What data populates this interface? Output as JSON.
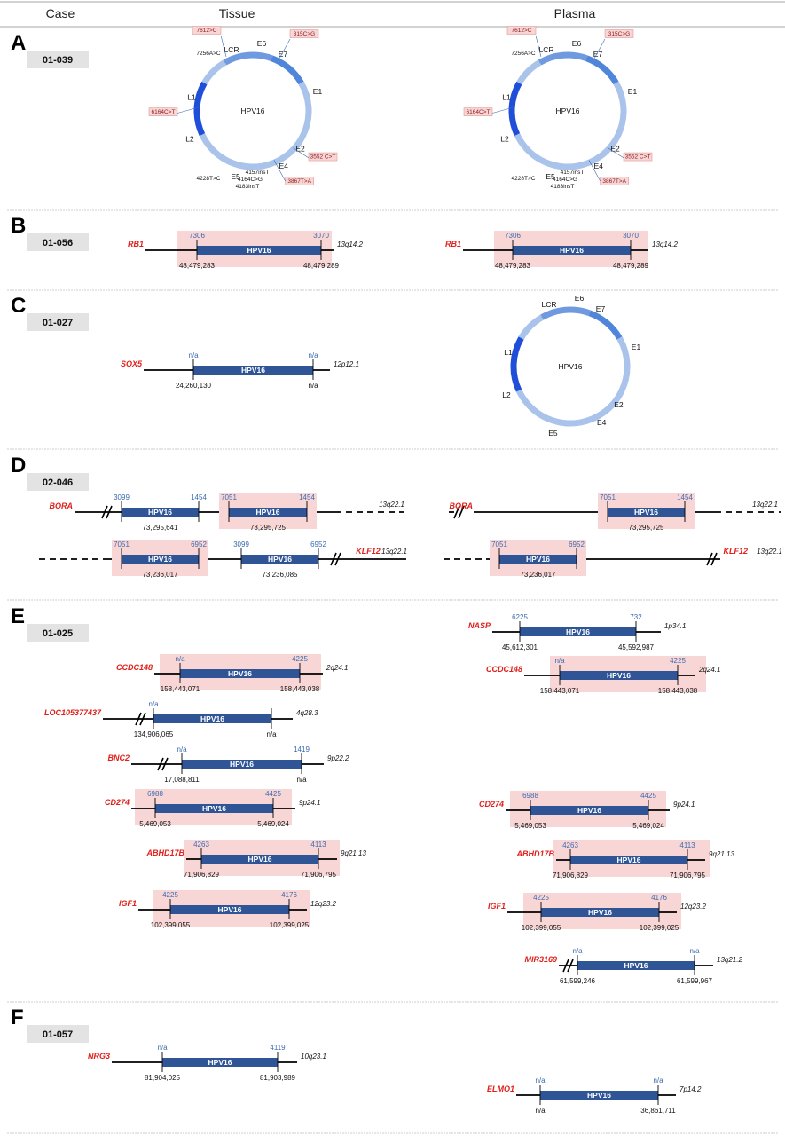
{
  "headers": {
    "case": "Case",
    "tissue": "Tissue",
    "plasma": "Plasma"
  },
  "colors": {
    "accent": "#2f5597",
    "highlight": "#f9d6d6",
    "gene": "#e0201b",
    "tick": "#3b6bb0"
  },
  "sections": [
    {
      "letter": "A",
      "case": "01-039"
    },
    {
      "letter": "B",
      "case": "01-056"
    },
    {
      "letter": "C",
      "case": "01-027"
    },
    {
      "letter": "D",
      "case": "02-046"
    },
    {
      "letter": "E",
      "case": "01-025"
    },
    {
      "letter": "F",
      "case": "01-057"
    }
  ],
  "circle": {
    "center_label": "HPV16",
    "genes": [
      "LCR",
      "E6",
      "E7",
      "E1",
      "E2",
      "E4",
      "E5",
      "L2",
      "L1"
    ],
    "mutations": [
      "7612>C",
      "315C>G",
      "6164C>T",
      "3552 C>T",
      "3867T>A"
    ],
    "variants": [
      "7256A>C",
      "4228T>C",
      "4157insT",
      "4164C>G",
      "4183insT"
    ]
  },
  "integrations": [
    {
      "id": "B-t",
      "gene": "RB1",
      "band": "13q14.2",
      "left_top": "7306",
      "right_top": "3070",
      "left_bottom": "48,479,283",
      "right_bottom": "48,479,289",
      "label": "HPV16"
    },
    {
      "id": "B-p",
      "gene": "RB1",
      "band": "13q14.2",
      "left_top": "7306",
      "right_top": "3070",
      "left_bottom": "48,479,283",
      "right_bottom": "48,479,289",
      "label": "HPV16"
    },
    {
      "id": "C-t",
      "gene": "SOX5",
      "band": "12p12.1",
      "left_top": "n/a",
      "right_top": "n/a",
      "left_bottom": "24,260,130",
      "right_bottom": "n/a",
      "label": "HPV16"
    },
    {
      "id": "D-t1",
      "gene": "BORA",
      "band": "13q22.1",
      "left_top": "3099",
      "right_top": "1454",
      "left_bottom": "73,295,641",
      "right_bottom": "",
      "seg2_left_top": "7051",
      "seg2_right_top": "1454",
      "seg2_bottom": "73,295,725",
      "label": "HPV16"
    },
    {
      "id": "D-t2",
      "gene": "KLF12",
      "band": "13q22.1",
      "left_top": "7051",
      "right_top": "6952",
      "left_bottom": "73,236,017",
      "seg2_left_top": "3099",
      "seg2_right_top": "6952",
      "seg2_bottom": "73,236,085",
      "label": "HPV16"
    },
    {
      "id": "D-p1",
      "gene": "BORA",
      "band": "13q22.1",
      "left_top": "7051",
      "right_top": "1454",
      "left_bottom": "73,295,725",
      "label": "HPV16"
    },
    {
      "id": "D-p2",
      "gene": "KLF12",
      "band": "13q22.1",
      "left_top": "7051",
      "right_top": "6952",
      "left_bottom": "73,236,017",
      "label": "HPV16"
    },
    {
      "id": "E-t1",
      "gene": "CCDC148",
      "band": "2q24.1",
      "left_top": "n/a",
      "right_top": "4225",
      "left_bottom": "158,443,071",
      "right_bottom": "158,443,038",
      "label": "HPV16"
    },
    {
      "id": "E-t2",
      "gene": "LOC105377437",
      "band": "4q28.3",
      "left_top": "n/a",
      "right_top": "",
      "left_bottom": "134,906,065",
      "right_bottom": "n/a",
      "label": "HPV16"
    },
    {
      "id": "E-t3",
      "gene": "BNC2",
      "band": "9p22.2",
      "left_top": "n/a",
      "right_top": "1419",
      "left_bottom": "17,088,811",
      "right_bottom": "n/a",
      "label": "HPV16"
    },
    {
      "id": "E-t4",
      "gene": "CD274",
      "band": "9p24.1",
      "left_top": "6988",
      "right_top": "4425",
      "left_bottom": "5,469,053",
      "right_bottom": "5,469,024",
      "label": "HPV16"
    },
    {
      "id": "E-t5",
      "gene": "ABHD17B",
      "band": "9q21.13",
      "left_top": "4263",
      "right_top": "4113",
      "left_bottom": "71,906,829",
      "right_bottom": "71,906,795",
      "label": "HPV16"
    },
    {
      "id": "E-t6",
      "gene": "IGF1",
      "band": "12q23.2",
      "left_top": "4225",
      "right_top": "4176",
      "left_bottom": "102,399,055",
      "right_bottom": "102,399,025",
      "label": "HPV16"
    },
    {
      "id": "E-p1",
      "gene": "NASP",
      "band": "1p34.1",
      "left_top": "6225",
      "right_top": "732",
      "left_bottom": "45,612,301",
      "right_bottom": "45,592,987",
      "label": "HPV16"
    },
    {
      "id": "E-p2",
      "gene": "CCDC148",
      "band": "2q24.1",
      "left_top": "n/a",
      "right_top": "4225",
      "left_bottom": "158,443,071",
      "right_bottom": "158,443,038",
      "label": "HPV16"
    },
    {
      "id": "E-p3",
      "gene": "CD274",
      "band": "9p24.1",
      "left_top": "6988",
      "right_top": "4425",
      "left_bottom": "5,469,053",
      "right_bottom": "5,469,024",
      "label": "HPV16"
    },
    {
      "id": "E-p4",
      "gene": "ABHD17B",
      "band": "9q21.13",
      "left_top": "4263",
      "right_top": "4113",
      "left_bottom": "71,906,829",
      "right_bottom": "71,906,795",
      "label": "HPV16"
    },
    {
      "id": "E-p5",
      "gene": "IGF1",
      "band": "12q23.2",
      "left_top": "4225",
      "right_top": "4176",
      "left_bottom": "102,399,055",
      "right_bottom": "102,399,025",
      "label": "HPV16"
    },
    {
      "id": "E-p6",
      "gene": "MIR3169",
      "band": "13q21.2",
      "left_top": "n/a",
      "right_top": "n/a",
      "left_bottom": "61,599,246",
      "right_bottom": "61,599,967",
      "label": "HPV16"
    },
    {
      "id": "F-t",
      "gene": "NRG3",
      "band": "10q23.1",
      "left_top": "n/a",
      "right_top": "4119",
      "left_bottom": "81,904,025",
      "right_bottom": "81,903,989",
      "label": "HPV16"
    },
    {
      "id": "F-p",
      "gene": "ELMO1",
      "band": "7p14.2",
      "left_top": "n/a",
      "right_top": "n/a",
      "left_bottom": "n/a",
      "right_bottom": "36,861,711",
      "label": "HPV16"
    }
  ]
}
